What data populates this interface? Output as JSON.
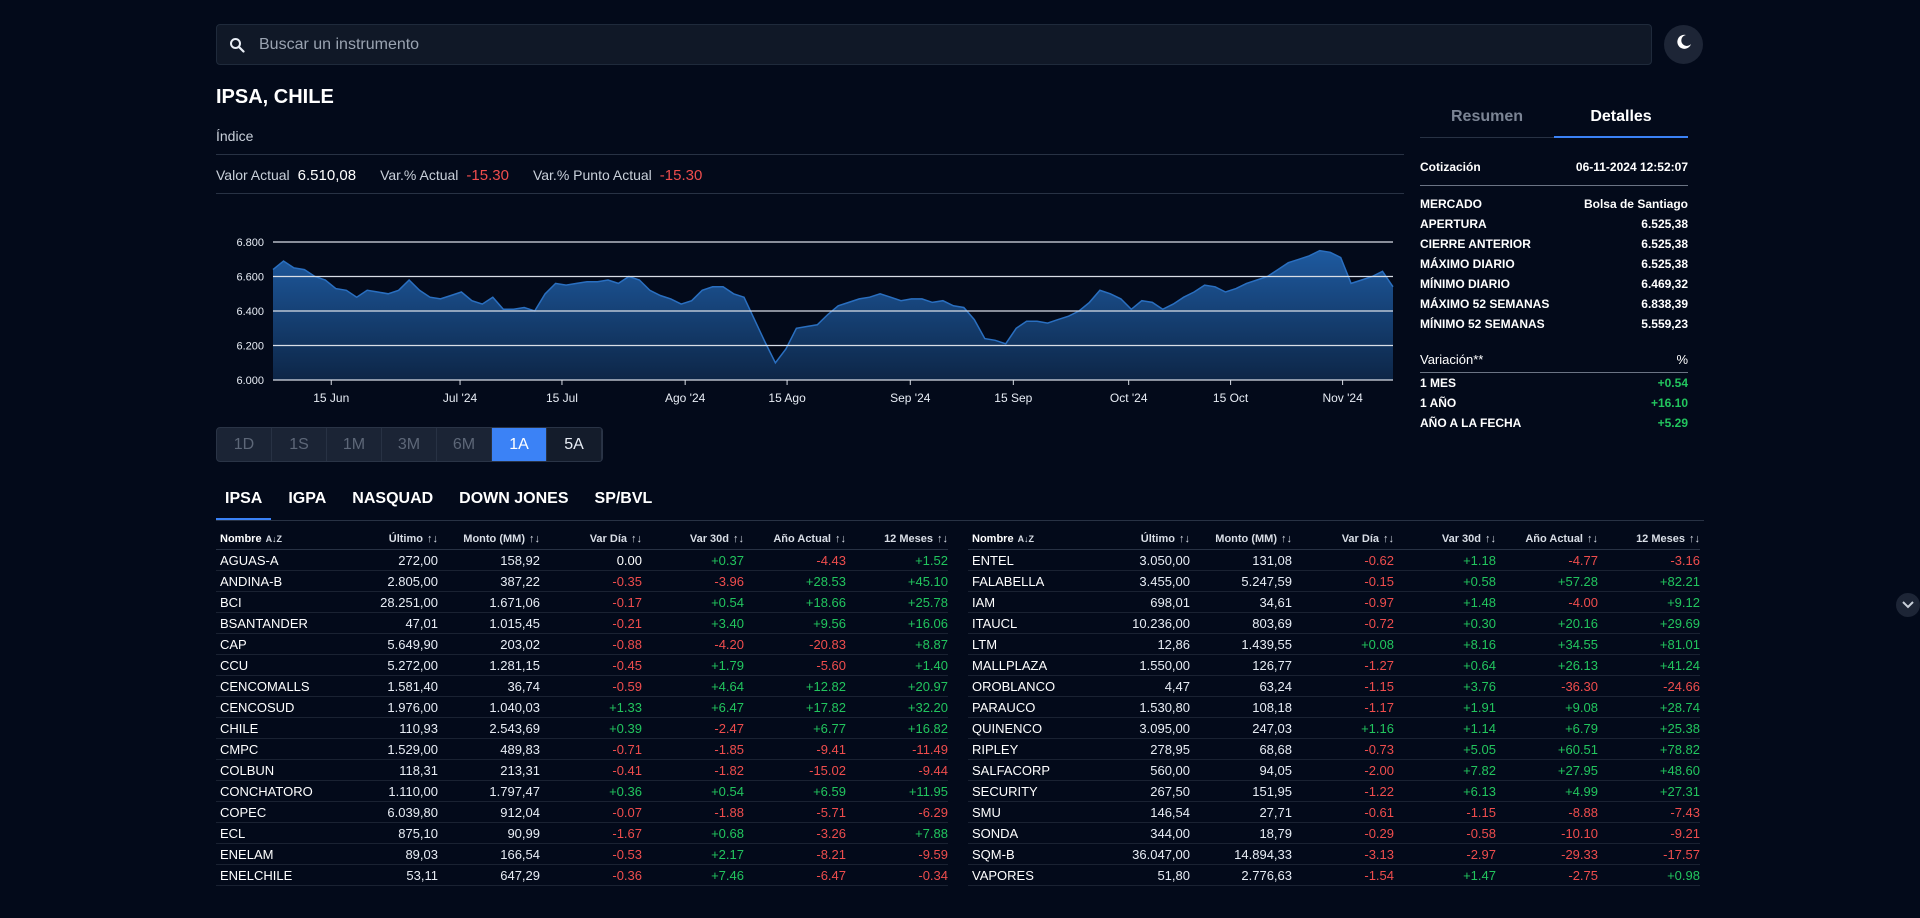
{
  "search": {
    "placeholder": "Buscar un instrumento"
  },
  "header": {
    "title": "IPSA, CHILE",
    "subtitle": "Índice",
    "valor_actual_label": "Valor Actual",
    "valor_actual": "6.510,08",
    "var_actual_label": "Var.% Actual",
    "var_actual": "-15.30",
    "var_punto_label": "Var.% Punto Actual",
    "var_punto": "-15.30"
  },
  "colors": {
    "accent": "#3b82f6",
    "positive": "#22c55e",
    "negative": "#ef4d4d",
    "background": "#030a1a"
  },
  "icons": {
    "search": "search-icon",
    "theme": "moon-icon",
    "sort": "sort-arrows-icon",
    "sort_az": "sort-az-icon",
    "side": "chevron-down-icon"
  },
  "chart_data": {
    "type": "area",
    "title": "",
    "y_ticks": [
      "6.800",
      "6.600",
      "6.400",
      "6.200",
      "6.000"
    ],
    "y_tick_values": [
      6800,
      6600,
      6400,
      6200,
      6000
    ],
    "ylim": [
      6000,
      6800
    ],
    "x_ticks": [
      "15 Jun",
      "Jul '24",
      "15 Jul",
      "Ago '24",
      "15 Ago",
      "Sep '24",
      "15 Sep",
      "Oct '24",
      "15 Oct",
      "Nov '24"
    ],
    "grid": true,
    "values": [
      6640,
      6690,
      6650,
      6640,
      6600,
      6580,
      6530,
      6520,
      6480,
      6520,
      6510,
      6500,
      6520,
      6580,
      6520,
      6480,
      6470,
      6490,
      6510,
      6460,
      6440,
      6480,
      6410,
      6410,
      6420,
      6400,
      6500,
      6560,
      6550,
      6560,
      6570,
      6570,
      6580,
      6560,
      6600,
      6580,
      6520,
      6490,
      6470,
      6440,
      6460,
      6520,
      6540,
      6540,
      6500,
      6480,
      6350,
      6220,
      6100,
      6180,
      6300,
      6310,
      6320,
      6380,
      6430,
      6450,
      6470,
      6480,
      6500,
      6480,
      6460,
      6470,
      6470,
      6450,
      6460,
      6430,
      6420,
      6350,
      6240,
      6230,
      6210,
      6300,
      6340,
      6340,
      6330,
      6350,
      6370,
      6400,
      6450,
      6520,
      6500,
      6470,
      6410,
      6460,
      6450,
      6410,
      6440,
      6480,
      6510,
      6550,
      6540,
      6510,
      6530,
      6560,
      6580,
      6600,
      6640,
      6680,
      6700,
      6720,
      6750,
      6740,
      6710,
      6560,
      6580,
      6600,
      6630,
      6540
    ]
  },
  "ranges": [
    "1D",
    "1S",
    "1M",
    "3M",
    "6M",
    "1A",
    "5A"
  ],
  "details": {
    "tabs": [
      "Resumen",
      "Detalles"
    ],
    "cotizacion_label": "Cotización",
    "cotizacion": "06-11-2024 12:52:07",
    "rows": [
      {
        "label": "MERCADO",
        "value": "Bolsa de Santiago"
      },
      {
        "label": "APERTURA",
        "value": "6.525,38"
      },
      {
        "label": "CIERRE ANTERIOR",
        "value": "6.525,38"
      },
      {
        "label": "MÁXIMO DIARIO",
        "value": "6.525,38"
      },
      {
        "label": "MÍNIMO DIARIO",
        "value": "6.469,32"
      },
      {
        "label": "MÁXIMO 52 SEMANAS",
        "value": "6.838,39"
      },
      {
        "label": "MÍNIMO 52 SEMANAS",
        "value": "5.559,23"
      }
    ],
    "variacion_label": "Variación**",
    "variacion_unit": "%",
    "variaciones": [
      {
        "label": "1 MES",
        "value": "+0.54"
      },
      {
        "label": "1 AÑO",
        "value": "+16.10"
      },
      {
        "label": "AÑO A LA FECHA",
        "value": "+5.29"
      }
    ]
  },
  "market_tabs": [
    "IPSA",
    "IGPA",
    "NASQUAD",
    "DOWN JONES",
    "SP/BVL"
  ],
  "table": {
    "columns": [
      "Nombre",
      "Último",
      "Monto (MM)",
      "Var Día",
      "Var 30d",
      "Año Actual",
      "12 Meses"
    ],
    "left": [
      [
        "AGUAS-A",
        "272,00",
        "158,92",
        "0.00",
        "+0.37",
        "-4.43",
        "+1.52"
      ],
      [
        "ANDINA-B",
        "2.805,00",
        "387,22",
        "-0.35",
        "-3.96",
        "+28.53",
        "+45.10"
      ],
      [
        "BCI",
        "28.251,00",
        "1.671,06",
        "-0.17",
        "+0.54",
        "+18.66",
        "+25.78"
      ],
      [
        "BSANTANDER",
        "47,01",
        "1.015,45",
        "-0.21",
        "+3.40",
        "+9.56",
        "+16.06"
      ],
      [
        "CAP",
        "5.649,90",
        "203,02",
        "-0.88",
        "-4.20",
        "-20.83",
        "+8.87"
      ],
      [
        "CCU",
        "5.272,00",
        "1.281,15",
        "-0.45",
        "+1.79",
        "-5.60",
        "+1.40"
      ],
      [
        "CENCOMALLS",
        "1.581,40",
        "36,74",
        "-0.59",
        "+4.64",
        "+12.82",
        "+20.97"
      ],
      [
        "CENCOSUD",
        "1.976,00",
        "1.040,03",
        "+1.33",
        "+6.47",
        "+17.82",
        "+32.20"
      ],
      [
        "CHILE",
        "110,93",
        "2.543,69",
        "+0.39",
        "-2.47",
        "+6.77",
        "+16.82"
      ],
      [
        "CMPC",
        "1.529,00",
        "489,83",
        "-0.71",
        "-1.85",
        "-9.41",
        "-11.49"
      ],
      [
        "COLBUN",
        "118,31",
        "213,31",
        "-0.41",
        "-1.82",
        "-15.02",
        "-9.44"
      ],
      [
        "CONCHATORO",
        "1.110,00",
        "1.797,47",
        "+0.36",
        "+0.54",
        "+6.59",
        "+11.95"
      ],
      [
        "COPEC",
        "6.039,80",
        "912,04",
        "-0.07",
        "-1.88",
        "-5.71",
        "-6.29"
      ],
      [
        "ECL",
        "875,10",
        "90,99",
        "-1.67",
        "+0.68",
        "-3.26",
        "+7.88"
      ],
      [
        "ENELAM",
        "89,03",
        "166,54",
        "-0.53",
        "+2.17",
        "-8.21",
        "-9.59"
      ],
      [
        "ENELCHILE",
        "53,11",
        "647,29",
        "-0.36",
        "+7.46",
        "-6.47",
        "-0.34"
      ]
    ],
    "right": [
      [
        "ENTEL",
        "3.050,00",
        "131,08",
        "-0.62",
        "+1.18",
        "-4.77",
        "-3.16"
      ],
      [
        "FALABELLA",
        "3.455,00",
        "5.247,59",
        "-0.15",
        "+0.58",
        "+57.28",
        "+82.21"
      ],
      [
        "IAM",
        "698,01",
        "34,61",
        "-0.97",
        "+1.48",
        "-4.00",
        "+9.12"
      ],
      [
        "ITAUCL",
        "10.236,00",
        "803,69",
        "-0.72",
        "+0.30",
        "+20.16",
        "+29.69"
      ],
      [
        "LTM",
        "12,86",
        "1.439,55",
        "+0.08",
        "+8.16",
        "+34.55",
        "+81.01"
      ],
      [
        "MALLPLAZA",
        "1.550,00",
        "126,77",
        "-1.27",
        "+0.64",
        "+26.13",
        "+41.24"
      ],
      [
        "OROBLANCO",
        "4,47",
        "63,24",
        "-1.15",
        "+3.76",
        "-36.30",
        "-24.66"
      ],
      [
        "PARAUCO",
        "1.530,80",
        "108,18",
        "-1.17",
        "+1.91",
        "+9.08",
        "+28.74"
      ],
      [
        "QUINENCO",
        "3.095,00",
        "247,03",
        "+1.16",
        "+1.14",
        "+6.79",
        "+25.38"
      ],
      [
        "RIPLEY",
        "278,95",
        "68,68",
        "-0.73",
        "+5.05",
        "+60.51",
        "+78.82"
      ],
      [
        "SALFACORP",
        "560,00",
        "94,05",
        "-2.00",
        "+7.82",
        "+27.95",
        "+48.60"
      ],
      [
        "SECURITY",
        "267,50",
        "151,95",
        "-1.22",
        "+6.13",
        "+4.99",
        "+27.31"
      ],
      [
        "SMU",
        "146,54",
        "27,71",
        "-0.61",
        "-1.15",
        "-8.88",
        "-7.43"
      ],
      [
        "SONDA",
        "344,00",
        "18,79",
        "-0.29",
        "-0.58",
        "-10.10",
        "-9.21"
      ],
      [
        "SQM-B",
        "36.047,00",
        "14.894,33",
        "-3.13",
        "-2.97",
        "-29.33",
        "-17.57"
      ],
      [
        "VAPORES",
        "51,80",
        "2.776,63",
        "-1.54",
        "+1.47",
        "-2.75",
        "+0.98"
      ]
    ]
  }
}
